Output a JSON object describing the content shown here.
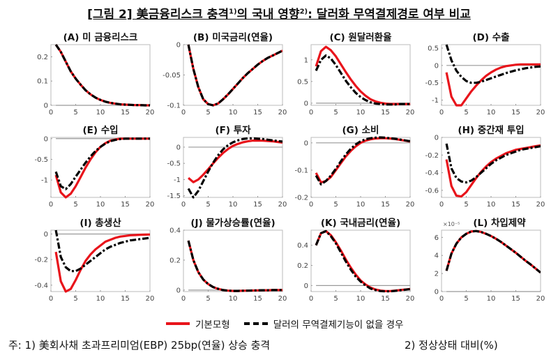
{
  "figure": {
    "title_prefix": "[그림 2] 美금융리스크 충격",
    "title_sup1": "1)",
    "title_mid": "의 국내 영향",
    "title_sup2": "2)",
    "title_suffix": ": 달러화 무역결제경로 여부 비교",
    "legend": [
      "기본모형",
      "달러의 무역결제기능이 없을 경우"
    ],
    "footnote1": "주: 1) 美회사채 초과프리미엄(EBP) 25bp(연율) 상승 충격",
    "footnote2": "2) 정상상태 대비(%)",
    "colors": {
      "baseline": "#e8141b",
      "no_dollar": "#000000",
      "zero_line": "#999999"
    }
  },
  "chart_data": [
    {
      "type": "line",
      "title": "(A) 미 금융리스크",
      "xlim": [
        0,
        20
      ],
      "ylim": [
        0,
        0.25
      ],
      "xticks": [
        0,
        5,
        10,
        15,
        20
      ],
      "yticks": [
        0,
        0.1,
        0.2
      ],
      "x": [
        1,
        2,
        3,
        4,
        5,
        6,
        7,
        8,
        9,
        10,
        11,
        12,
        13,
        14,
        15,
        16,
        17,
        18,
        19,
        20
      ],
      "series": [
        {
          "name": "기본모형",
          "values": [
            0.25,
            0.22,
            0.18,
            0.14,
            0.11,
            0.085,
            0.062,
            0.045,
            0.032,
            0.022,
            0.015,
            0.01,
            0.007,
            0.004,
            0.003,
            0.002,
            0.001,
            0.001,
            0,
            0
          ]
        },
        {
          "name": "달러의 무역결제기능이 없을 경우",
          "values": [
            0.25,
            0.22,
            0.18,
            0.14,
            0.11,
            0.085,
            0.062,
            0.045,
            0.032,
            0.022,
            0.015,
            0.01,
            0.007,
            0.004,
            0.003,
            0.002,
            0.001,
            0.001,
            0,
            0
          ]
        }
      ]
    },
    {
      "type": "line",
      "title": "(B) 미국금리(연율)",
      "xlim": [
        0,
        20
      ],
      "ylim": [
        -0.1,
        0
      ],
      "xticks": [
        0,
        5,
        10,
        15,
        20
      ],
      "yticks": [
        -0.1,
        -0.05,
        0
      ],
      "x": [
        1,
        2,
        3,
        4,
        5,
        6,
        7,
        8,
        9,
        10,
        11,
        12,
        13,
        14,
        15,
        16,
        17,
        18,
        19,
        20
      ],
      "series": [
        {
          "name": "기본모형",
          "values": [
            0,
            -0.04,
            -0.07,
            -0.09,
            -0.098,
            -0.1,
            -0.097,
            -0.09,
            -0.082,
            -0.073,
            -0.064,
            -0.055,
            -0.047,
            -0.04,
            -0.033,
            -0.027,
            -0.022,
            -0.018,
            -0.014,
            -0.01
          ]
        },
        {
          "name": "달러의 무역결제기능이 없을 경우",
          "values": [
            0,
            -0.04,
            -0.07,
            -0.09,
            -0.098,
            -0.1,
            -0.097,
            -0.09,
            -0.082,
            -0.073,
            -0.064,
            -0.055,
            -0.047,
            -0.04,
            -0.033,
            -0.027,
            -0.022,
            -0.018,
            -0.014,
            -0.01
          ]
        }
      ]
    },
    {
      "type": "line",
      "title": "(C) 원달러환율",
      "xlim": [
        0,
        20
      ],
      "ylim": [
        -0.05,
        1.35
      ],
      "xticks": [
        0,
        5,
        10,
        15,
        20
      ],
      "yticks": [
        0,
        0.5,
        1
      ],
      "x": [
        1,
        2,
        3,
        4,
        5,
        6,
        7,
        8,
        9,
        10,
        11,
        12,
        13,
        14,
        15,
        16,
        17,
        18,
        19,
        20
      ],
      "series": [
        {
          "name": "기본모형",
          "values": [
            0.85,
            1.2,
            1.3,
            1.22,
            1.08,
            0.9,
            0.72,
            0.55,
            0.4,
            0.27,
            0.17,
            0.09,
            0.04,
            0.01,
            -0.01,
            -0.02,
            -0.02,
            -0.02,
            -0.02,
            -0.02
          ]
        },
        {
          "name": "달러의 무역결제기능이 없을 경우",
          "values": [
            0.75,
            1.0,
            1.1,
            1.03,
            0.88,
            0.7,
            0.52,
            0.37,
            0.24,
            0.14,
            0.07,
            0.02,
            -0.01,
            -0.02,
            -0.03,
            -0.03,
            -0.03,
            -0.02,
            -0.02,
            -0.02
          ]
        }
      ]
    },
    {
      "type": "line",
      "title": "(D) 수출",
      "xlim": [
        0,
        20
      ],
      "ylim": [
        -1.15,
        0.6
      ],
      "xticks": [
        0,
        5,
        10,
        15,
        20
      ],
      "yticks": [
        -1,
        -0.5,
        0,
        0.5
      ],
      "x": [
        1,
        2,
        3,
        4,
        5,
        6,
        7,
        8,
        9,
        10,
        11,
        12,
        13,
        14,
        15,
        16,
        17,
        18,
        19,
        20
      ],
      "series": [
        {
          "name": "기본모형",
          "values": [
            -0.2,
            -0.9,
            -1.15,
            -1.15,
            -0.95,
            -0.75,
            -0.58,
            -0.43,
            -0.3,
            -0.2,
            -0.12,
            -0.06,
            -0.02,
            0,
            0.02,
            0.03,
            0.03,
            0.03,
            0.03,
            0.03
          ]
        },
        {
          "name": "달러의 무역결제기능이 없을 경우",
          "values": [
            0.6,
            0.15,
            -0.15,
            -0.33,
            -0.45,
            -0.5,
            -0.5,
            -0.47,
            -0.42,
            -0.37,
            -0.32,
            -0.27,
            -0.22,
            -0.18,
            -0.14,
            -0.11,
            -0.08,
            -0.06,
            -0.04,
            -0.03
          ]
        }
      ]
    },
    {
      "type": "line",
      "title": "(E) 수입",
      "xlim": [
        0,
        20
      ],
      "ylim": [
        -1.42,
        0.03
      ],
      "xticks": [
        0,
        5,
        10,
        15,
        20
      ],
      "yticks": [
        -1,
        -0.5,
        0
      ],
      "x": [
        1,
        2,
        3,
        4,
        5,
        6,
        7,
        8,
        9,
        10,
        11,
        12,
        13,
        14,
        15,
        16,
        17,
        18,
        19,
        20
      ],
      "series": [
        {
          "name": "기본모형",
          "values": [
            -0.88,
            -1.3,
            -1.42,
            -1.33,
            -1.15,
            -0.93,
            -0.7,
            -0.5,
            -0.33,
            -0.2,
            -0.11,
            -0.05,
            -0.02,
            0,
            0,
            0,
            0,
            0,
            0,
            0
          ]
        },
        {
          "name": "달러의 무역결제기능이 없을 경우",
          "values": [
            -0.8,
            -1.15,
            -1.22,
            -1.1,
            -0.92,
            -0.75,
            -0.58,
            -0.43,
            -0.3,
            -0.2,
            -0.12,
            -0.06,
            -0.03,
            -0.01,
            0,
            0,
            0,
            0,
            0,
            0
          ]
        }
      ]
    },
    {
      "type": "line",
      "title": "(F) 투자",
      "xlim": [
        0,
        20
      ],
      "ylim": [
        -1.55,
        0.3
      ],
      "xticks": [
        0,
        5,
        10,
        15,
        20
      ],
      "yticks": [
        -1.5,
        -1,
        -0.5,
        0
      ],
      "x": [
        1,
        2,
        3,
        4,
        5,
        6,
        7,
        8,
        9,
        10,
        11,
        12,
        13,
        14,
        15,
        16,
        17,
        18,
        19,
        20
      ],
      "series": [
        {
          "name": "기본모형",
          "values": [
            -0.95,
            -1.08,
            -1.0,
            -0.85,
            -0.68,
            -0.5,
            -0.33,
            -0.18,
            -0.06,
            0.04,
            0.1,
            0.15,
            0.18,
            0.2,
            0.2,
            0.2,
            0.19,
            0.18,
            0.16,
            0.14
          ]
        },
        {
          "name": "달러의 무역결제기능이 없을 경우",
          "values": [
            -1.28,
            -1.55,
            -1.35,
            -1.05,
            -0.75,
            -0.48,
            -0.25,
            -0.07,
            0.06,
            0.15,
            0.21,
            0.25,
            0.27,
            0.27,
            0.26,
            0.25,
            0.23,
            0.21,
            0.19,
            0.17
          ]
        }
      ]
    },
    {
      "type": "line",
      "title": "(G) 소비",
      "xlim": [
        0,
        20
      ],
      "ylim": [
        -0.2,
        0.02
      ],
      "xticks": [
        0,
        5,
        10,
        15,
        20
      ],
      "yticks": [
        -0.2,
        -0.1,
        0
      ],
      "x": [
        1,
        2,
        3,
        4,
        5,
        6,
        7,
        8,
        9,
        10,
        11,
        12,
        13,
        14,
        15,
        16,
        17,
        18,
        19,
        20
      ],
      "series": [
        {
          "name": "기본모형",
          "values": [
            -0.11,
            -0.145,
            -0.14,
            -0.125,
            -0.1,
            -0.075,
            -0.05,
            -0.03,
            -0.013,
            0,
            0.008,
            0.013,
            0.016,
            0.017,
            0.017,
            0.016,
            0.014,
            0.011,
            0.008,
            0.005
          ]
        },
        {
          "name": "달러의 무역결제기능이 없을 경우",
          "values": [
            -0.12,
            -0.152,
            -0.14,
            -0.12,
            -0.095,
            -0.068,
            -0.043,
            -0.022,
            -0.006,
            0.006,
            0.013,
            0.017,
            0.019,
            0.02,
            0.019,
            0.017,
            0.015,
            0.012,
            0.009,
            0.006
          ]
        }
      ]
    },
    {
      "type": "line",
      "title": "(H) 중간재 투입",
      "xlim": [
        0,
        20
      ],
      "ylim": [
        -0.68,
        0
      ],
      "xticks": [
        0,
        5,
        10,
        15,
        20
      ],
      "yticks": [
        -0.6,
        -0.4,
        -0.2,
        0
      ],
      "x": [
        1,
        2,
        3,
        4,
        5,
        6,
        7,
        8,
        9,
        10,
        11,
        12,
        13,
        14,
        15,
        16,
        17,
        18,
        19,
        20
      ],
      "series": [
        {
          "name": "기본모형",
          "values": [
            -0.25,
            -0.55,
            -0.66,
            -0.67,
            -0.62,
            -0.54,
            -0.46,
            -0.39,
            -0.33,
            -0.28,
            -0.24,
            -0.21,
            -0.18,
            -0.16,
            -0.14,
            -0.13,
            -0.12,
            -0.11,
            -0.1,
            -0.09
          ]
        },
        {
          "name": "달러의 무역결제기능이 없을 경우",
          "values": [
            -0.07,
            -0.35,
            -0.46,
            -0.5,
            -0.51,
            -0.49,
            -0.45,
            -0.4,
            -0.35,
            -0.3,
            -0.26,
            -0.23,
            -0.2,
            -0.18,
            -0.16,
            -0.14,
            -0.13,
            -0.12,
            -0.11,
            -0.1
          ]
        }
      ]
    },
    {
      "type": "line",
      "title": "(I) 총생산",
      "xlim": [
        0,
        20
      ],
      "ylim": [
        -0.45,
        0.03
      ],
      "xticks": [
        0,
        5,
        10,
        15,
        20
      ],
      "yticks": [
        -0.4,
        -0.2,
        0
      ],
      "x": [
        1,
        2,
        3,
        4,
        5,
        6,
        7,
        8,
        9,
        10,
        11,
        12,
        13,
        14,
        15,
        16,
        17,
        18,
        19,
        20
      ],
      "series": [
        {
          "name": "기본모형",
          "values": [
            -0.14,
            -0.37,
            -0.45,
            -0.43,
            -0.36,
            -0.28,
            -0.21,
            -0.16,
            -0.12,
            -0.09,
            -0.06,
            -0.045,
            -0.03,
            -0.02,
            -0.015,
            -0.01,
            -0.008,
            -0.006,
            -0.005,
            -0.004
          ]
        },
        {
          "name": "달러의 무역결제기능이 없을 경우",
          "values": [
            0.03,
            -0.18,
            -0.26,
            -0.29,
            -0.29,
            -0.27,
            -0.24,
            -0.21,
            -0.18,
            -0.15,
            -0.12,
            -0.1,
            -0.085,
            -0.07,
            -0.06,
            -0.05,
            -0.045,
            -0.04,
            -0.035,
            -0.03
          ]
        }
      ]
    },
    {
      "type": "line",
      "title": "(J) 물가상승률(연율)",
      "xlim": [
        0,
        20
      ],
      "ylim": [
        -0.01,
        0.4
      ],
      "xticks": [
        0,
        5,
        10,
        15,
        20
      ],
      "yticks": [
        0,
        0.2,
        0.4
      ],
      "x": [
        1,
        2,
        3,
        4,
        5,
        6,
        7,
        8,
        9,
        10,
        11,
        12,
        13,
        14,
        15,
        16,
        17,
        18,
        19,
        20
      ],
      "series": [
        {
          "name": "기본모형",
          "values": [
            0.33,
            0.2,
            0.12,
            0.07,
            0.04,
            0.02,
            0.008,
            0,
            -0.004,
            -0.006,
            -0.006,
            -0.005,
            -0.004,
            -0.003,
            -0.002,
            -0.001,
            -0.001,
            0,
            0,
            0
          ]
        },
        {
          "name": "달러의 무역결제기능이 없을 경우",
          "values": [
            0.33,
            0.2,
            0.12,
            0.07,
            0.04,
            0.02,
            0.008,
            0,
            -0.004,
            -0.006,
            -0.006,
            -0.005,
            -0.004,
            -0.003,
            -0.002,
            -0.001,
            -0.001,
            0,
            0,
            0
          ]
        }
      ]
    },
    {
      "type": "line",
      "title": "(K) 국내금리(연율)",
      "xlim": [
        0,
        20
      ],
      "ylim": [
        -0.06,
        0.55
      ],
      "xticks": [
        0,
        5,
        10,
        15,
        20
      ],
      "yticks": [
        0,
        0.2,
        0.4
      ],
      "x": [
        1,
        2,
        3,
        4,
        5,
        6,
        7,
        8,
        9,
        10,
        11,
        12,
        13,
        14,
        15,
        16,
        17,
        18,
        19,
        20
      ],
      "series": [
        {
          "name": "기본모형",
          "values": [
            0.4,
            0.52,
            0.54,
            0.5,
            0.43,
            0.35,
            0.26,
            0.18,
            0.11,
            0.05,
            0.01,
            -0.02,
            -0.04,
            -0.05,
            -0.055,
            -0.055,
            -0.05,
            -0.045,
            -0.04,
            -0.035
          ]
        },
        {
          "name": "달러의 무역결제기능이 없을 경우",
          "values": [
            0.4,
            0.52,
            0.54,
            0.49,
            0.42,
            0.33,
            0.24,
            0.16,
            0.09,
            0.04,
            0.0,
            -0.03,
            -0.045,
            -0.055,
            -0.058,
            -0.058,
            -0.053,
            -0.047,
            -0.042,
            -0.036
          ]
        }
      ]
    },
    {
      "type": "line",
      "title": "(L) 차입제약",
      "ylabel_scale": "×10⁻⁵",
      "xlim": [
        0,
        20
      ],
      "ylim": [
        0,
        6.8
      ],
      "xticks": [
        0,
        5,
        10,
        15,
        20
      ],
      "yticks": [
        0,
        2,
        4,
        6
      ],
      "x": [
        1,
        2,
        3,
        4,
        5,
        6,
        7,
        8,
        9,
        10,
        11,
        12,
        13,
        14,
        15,
        16,
        17,
        18,
        19,
        20
      ],
      "series": [
        {
          "name": "기본모형",
          "values": [
            2.3,
            4.2,
            5.3,
            6.0,
            6.4,
            6.65,
            6.7,
            6.6,
            6.4,
            6.15,
            5.85,
            5.5,
            5.1,
            4.7,
            4.3,
            3.85,
            3.4,
            3.0,
            2.55,
            2.1
          ]
        },
        {
          "name": "달러의 무역결제기능이 없을 경우",
          "values": [
            2.3,
            4.2,
            5.3,
            6.0,
            6.4,
            6.65,
            6.7,
            6.6,
            6.4,
            6.15,
            5.85,
            5.5,
            5.1,
            4.7,
            4.3,
            3.85,
            3.4,
            3.0,
            2.55,
            2.1
          ]
        }
      ]
    }
  ]
}
